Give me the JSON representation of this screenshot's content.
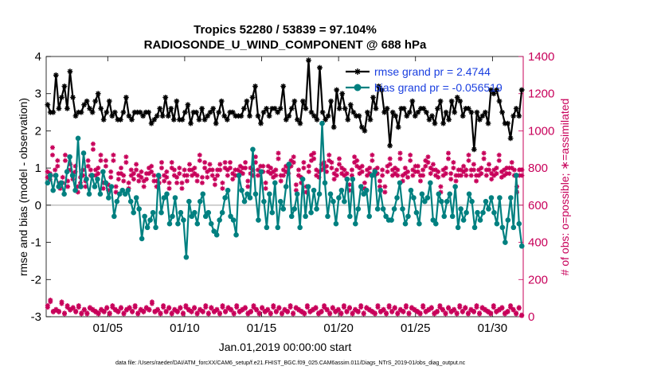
{
  "chart_data": {
    "type": "line",
    "title_line1": "Tropics 52280 / 53839 = 97.104%",
    "title_line2": "RADIOSONDE_U_WIND_COMPONENT @ 688 hPa",
    "xlabel": "Jan.01,2019 00:00:00 start",
    "ylabel_left": "rmse and bias (model - observation)",
    "ylabel_right": "# of obs: o=possible; ∗=assimilated",
    "xlim": [
      1,
      32
    ],
    "ylim_left": [
      -3,
      4
    ],
    "ylim_right": [
      0,
      1400
    ],
    "x_ticks": [
      5,
      10,
      15,
      20,
      25,
      30
    ],
    "x_tick_labels": [
      "01/05",
      "01/10",
      "01/15",
      "01/20",
      "01/25",
      "01/30"
    ],
    "y_ticks_left": [
      -3,
      -2,
      -1,
      0,
      1,
      2,
      3,
      4
    ],
    "y_tick_labels_left": [
      "-3",
      "-2",
      "-1",
      "0",
      "1",
      "2",
      "3",
      "4"
    ],
    "y_ticks_right": [
      0,
      200,
      400,
      600,
      800,
      1000,
      1200,
      1400
    ],
    "y_tick_labels_right": [
      "0",
      "200",
      "400",
      "600",
      "800",
      "1000",
      "1200",
      "1400"
    ],
    "zero_line": 0,
    "legend": [
      {
        "label": "rmse grand pr = 2.4744",
        "color": "#000000"
      },
      {
        "label": "bias grand pr = -0.056519",
        "color": "#008080"
      }
    ],
    "series": [
      {
        "name": "rmse",
        "color": "#000000",
        "values": [
          2.7,
          2.5,
          2.5,
          3.5,
          2.6,
          2.9,
          3.2,
          2.6,
          3.6,
          2.9,
          2.4,
          2.5,
          2.5,
          2.7,
          2.8,
          2.6,
          2.5,
          2.8,
          3.0,
          2.6,
          2.3,
          2.5,
          2.8,
          2.4,
          2.5,
          2.3,
          2.3,
          2.5,
          2.9,
          2.4,
          2.3,
          2.5,
          2.5,
          2.5,
          2.4,
          2.5,
          2.5,
          2.2,
          2.3,
          2.4,
          2.6,
          2.4,
          2.9,
          2.4,
          2.6,
          2.3,
          2.8,
          2.3,
          2.3,
          2.5,
          2.7,
          2.2,
          2.5,
          2.5,
          2.3,
          2.6,
          2.3,
          2.4,
          2.5,
          2.6,
          2.2,
          2.5,
          2.8,
          2.4,
          2.3,
          2.5,
          2.5,
          2.4,
          2.4,
          2.4,
          2.6,
          2.8,
          2.4,
          2.9,
          3.2,
          2.4,
          2.2,
          2.5,
          2.6,
          2.4,
          2.6,
          2.6,
          2.5,
          2.6,
          3.2,
          2.3,
          2.4,
          2.6,
          2.8,
          2.3,
          2.2,
          2.8,
          2.6,
          3.9,
          2.5,
          2.4,
          2.3,
          3.7,
          2.5,
          2.3,
          2.4,
          2.8,
          2.1,
          3.1,
          2.6,
          3.0,
          2.6,
          2.3,
          2.7,
          2.5,
          2.4,
          2.4,
          2.1,
          2.0,
          2.5,
          2.3,
          2.9,
          2.6,
          3.2,
          3.1,
          2.5,
          2.6,
          1.6,
          2.5,
          2.4,
          2.1,
          2.6,
          2.6,
          2.4,
          2.5,
          2.8,
          2.4,
          2.5,
          2.6,
          2.6,
          2.5,
          2.3,
          2.4,
          2.2,
          2.6,
          2.8,
          2.2,
          2.5,
          2.3,
          2.8,
          2.5,
          2.9,
          2.8,
          2.4,
          2.6,
          2.6,
          2.5,
          1.5,
          2.5,
          2.3,
          2.4,
          2.5,
          2.2,
          3.1,
          3.0,
          3.1,
          2.8,
          2.5,
          2.2,
          2.2,
          1.8,
          2.4,
          2.6,
          2.4,
          3.1
        ]
      },
      {
        "name": "bias",
        "color": "#008080",
        "values": [
          0.6,
          0.8,
          0.4,
          0.8,
          0.5,
          0.6,
          0.3,
          0.9,
          1.3,
          0.8,
          0.4,
          1.8,
          0.5,
          1.4,
          0.7,
          0.3,
          0.8,
          0.5,
          0.7,
          0.3,
          0.9,
          0.6,
          0.2,
          0.5,
          -0.3,
          0.1,
          0.3,
          0.4,
          0.3,
          0.4,
          0.1,
          -0.2,
          0.2,
          -0.1,
          -0.9,
          -0.3,
          -0.6,
          -0.4,
          -0.2,
          -0.6,
          0.8,
          -0.2,
          0.2,
          0.3,
          -0.5,
          -0.3,
          0.2,
          -0.5,
          -0.2,
          -0.4,
          -1.4,
          0.1,
          -0.3,
          -0.2,
          -0.5,
          0.1,
          0.3,
          -0.3,
          -0.2,
          -0.5,
          -0.7,
          -0.8,
          -0.4,
          -0.2,
          0.2,
          0.4,
          -0.3,
          -0.4,
          -0.8,
          0.8,
          0.4,
          0.1,
          0.3,
          0.2,
          1.5,
          0.3,
          -0.4,
          0.9,
          0.1,
          -0.6,
          0.3,
          -0.2,
          0.6,
          -0.6,
          0.1,
          -0.1,
          0.5,
          1.1,
          -0.3,
          -0.1,
          0.3,
          -0.6,
          0.7,
          -0.3,
          0.5,
          -0.2,
          0.4,
          -0.1,
          0.3,
          2.2,
          0.6,
          -0.3,
          0.3,
          0.1,
          -0.5,
          0.2,
          0.4,
          0.1,
          0.7,
          -0.3,
          0.7,
          -0.5,
          -0.1,
          0.5,
          0.3,
          0.4,
          -0.3,
          0.8,
          0.9,
          -0.1,
          0.4,
          -0.1,
          -0.3,
          -0.4,
          -0.4,
          -0.1,
          0.2,
          0.6,
          -0.1,
          -0.5,
          -0.3,
          0.4,
          0.2,
          -0.2,
          -0.5,
          0.3,
          0.1,
          0.2,
          0.6,
          -0.4,
          -0.5,
          0.3,
          0.1,
          -0.3,
          0.1,
          0.3,
          -0.3,
          0.5,
          -0.6,
          -0.1,
          -0.4,
          -0.2,
          0.3,
          0.1,
          -0.6,
          -0.2,
          -0.4,
          -0.2,
          0.1,
          -0.1,
          0.2,
          -0.2,
          -0.5,
          0.2,
          -0.6,
          -1.0,
          -0.4,
          0.2,
          -0.6,
          0.8,
          -0.5,
          -1.1
        ]
      },
      {
        "name": "obs possible",
        "color": "#c8005a",
        "axis": "right",
        "values": [
          60,
          90,
          30,
          40,
          30,
          80,
          20,
          60,
          40,
          50,
          30,
          60,
          20,
          40,
          20,
          50,
          40,
          30,
          20,
          40,
          30,
          50,
          20,
          60,
          40,
          30,
          50,
          20,
          40,
          50,
          30,
          60,
          20,
          40,
          30,
          50,
          40,
          80,
          30,
          40,
          20,
          60,
          30,
          50,
          20,
          40,
          30,
          50,
          20,
          60,
          40,
          30,
          50,
          20,
          40,
          30,
          60,
          20,
          50,
          30,
          40,
          20,
          60,
          30,
          50,
          40,
          20,
          60,
          30,
          40,
          50,
          20,
          30,
          60,
          40,
          20,
          50,
          30,
          40,
          20,
          60,
          30,
          50,
          20,
          40,
          30,
          60,
          20,
          50,
          40,
          30,
          20,
          60,
          30,
          40,
          50,
          20,
          30,
          60,
          40,
          20,
          50,
          30,
          40,
          20,
          60,
          30,
          50,
          20,
          40,
          30,
          60,
          20,
          50,
          40,
          30,
          20,
          60,
          30,
          40,
          20,
          60,
          30,
          50,
          20,
          40,
          30,
          60,
          20,
          50,
          40,
          30,
          20,
          60,
          30,
          40,
          50,
          20,
          30,
          60,
          40,
          20,
          50,
          30,
          40,
          20,
          60,
          30,
          50,
          20,
          40,
          30,
          60,
          20,
          50,
          40,
          30,
          20,
          60,
          30,
          40,
          50,
          20,
          30,
          60,
          40,
          20,
          50,
          10
        ]
      },
      {
        "name": "obs assimilated",
        "color": "#c8005a",
        "axis": "right",
        "values": [
          50,
          80,
          25,
          35,
          25,
          70,
          15,
          50,
          35,
          45,
          25,
          50,
          15,
          35,
          15,
          45,
          35,
          25,
          15,
          35,
          25,
          45,
          15,
          50,
          35,
          25,
          45,
          15,
          35,
          45,
          25,
          50,
          15,
          35,
          25,
          45,
          35,
          70,
          25,
          35,
          15,
          50,
          25,
          45,
          15,
          35,
          25,
          45,
          15,
          50,
          35,
          25,
          45,
          15,
          35,
          25,
          50,
          15,
          45,
          25,
          35,
          15,
          50,
          25,
          45,
          35,
          15,
          50,
          25,
          35,
          45,
          15,
          25,
          50,
          35,
          15,
          45,
          25,
          35,
          15,
          50,
          25,
          45,
          15,
          35,
          25,
          50,
          15,
          45,
          35,
          25,
          15,
          50,
          25,
          35,
          45,
          15,
          25,
          50,
          35,
          15,
          45,
          25,
          35,
          15,
          50,
          25,
          45,
          15,
          35,
          25,
          50,
          15,
          45,
          35,
          25,
          15,
          50,
          25,
          35,
          15,
          50,
          25,
          45,
          15,
          35,
          25,
          50,
          15,
          45,
          35,
          25,
          15,
          50,
          25,
          35,
          45,
          15,
          25,
          50,
          35,
          15,
          45,
          25,
          35,
          15,
          50,
          25,
          45,
          15,
          35,
          25,
          50,
          15,
          45,
          35,
          25,
          15,
          50,
          25,
          35,
          45,
          15,
          25,
          50,
          35,
          15,
          45,
          5
        ]
      },
      {
        "name": "obs possible (upper)",
        "color": "#c8005a",
        "axis": "right",
        "values": [
          780,
          770,
          910,
          790,
          840,
          720,
          750,
          870,
          730,
          820,
          770,
          810,
          700,
          750,
          790,
          730,
          840,
          790,
          930,
          790,
          800,
          870,
          720,
          840,
          710,
          780,
          870,
          700,
          770,
          800,
          760,
          860,
          720,
          790,
          770,
          820,
          760,
          780,
          730,
          770,
          800,
          810,
          760,
          730,
          750,
          830,
          760,
          780,
          720,
          830,
          790,
          750,
          800,
          720,
          790,
          760,
          820,
          790,
          800,
          760,
          870,
          750,
          830,
          780,
          820,
          790,
          740,
          790,
          820,
          720,
          830,
          790,
          830,
          770,
          790,
          790,
          810,
          800,
          830,
          730,
          800,
          790,
          860,
          790,
          810,
          810,
          720,
          810,
          800,
          780,
          790,
          880,
          760,
          790,
          810,
          800,
          840,
          860,
          710,
          790,
          750,
          830,
          700,
          810,
          870,
          880,
          790,
          780,
          820,
          830,
          810,
          870,
          830,
          770,
          790,
          850,
          800,
          790,
          770,
          710,
          790,
          860,
          840,
          800,
          810,
          720,
          790,
          800,
          870,
          790,
          800,
          730,
          790,
          700,
          810,
          850,
          790,
          800,
          790,
          880,
          760,
          800,
          780,
          870,
          790,
          810,
          810,
          760,
          790,
          840,
          860,
          800,
          820,
          790,
          780,
          700,
          790,
          800,
          880,
          770,
          830,
          760,
          790,
          790,
          810,
          790,
          870,
          790,
          820,
          760,
          790,
          800,
          880,
          790,
          820,
          770,
          790,
          800,
          870,
          780,
          790,
          800,
          800,
          830,
          790,
          700,
          790,
          790
        ]
      },
      {
        "name": "obs assimilated (upper)",
        "color": "#c8005a",
        "axis": "right",
        "values": [
          750,
          740,
          870,
          760,
          810,
          690,
          720,
          840,
          700,
          790,
          740,
          780,
          670,
          720,
          760,
          700,
          810,
          760,
          900,
          760,
          770,
          840,
          690,
          810,
          680,
          750,
          840,
          670,
          740,
          770,
          730,
          830,
          690,
          760,
          740,
          790,
          730,
          750,
          700,
          740,
          770,
          780,
          730,
          700,
          720,
          800,
          730,
          750,
          690,
          800,
          760,
          720,
          770,
          690,
          760,
          730,
          790,
          760,
          770,
          730,
          840,
          720,
          800,
          750,
          790,
          760,
          710,
          760,
          790,
          690,
          800,
          760,
          800,
          740,
          760,
          760,
          780,
          770,
          800,
          700,
          770,
          760,
          830,
          760,
          780,
          780,
          690,
          780,
          770,
          750,
          760,
          850,
          730,
          760,
          780,
          770,
          810,
          830,
          680,
          760,
          720,
          800,
          670,
          780,
          840,
          850,
          760,
          750,
          790,
          800,
          780,
          840,
          800,
          740,
          760,
          820,
          770,
          760,
          740,
          680,
          760,
          830,
          810,
          770,
          780,
          690,
          760,
          770,
          840,
          760,
          770,
          700,
          760,
          670,
          780,
          820,
          760,
          770,
          760,
          850,
          730,
          770,
          750,
          840,
          760,
          780,
          780,
          730,
          760,
          810,
          830,
          770,
          790,
          760,
          750,
          670,
          760,
          770,
          850,
          740,
          800,
          730,
          760,
          760,
          780,
          760,
          840,
          760,
          790,
          730,
          760,
          770,
          850,
          760,
          790,
          740,
          760,
          770,
          840,
          750,
          760,
          770,
          770,
          800,
          760,
          670,
          760,
          760
        ]
      }
    ]
  },
  "footnote": "data file: /Users/raeder/DAI/ATM_forcXX/CAM6_setup/f.e21.FHIST_BGC.f09_025.CAM6assim.011/Diags_NTrS_2019-01/obs_diag_output.nc"
}
